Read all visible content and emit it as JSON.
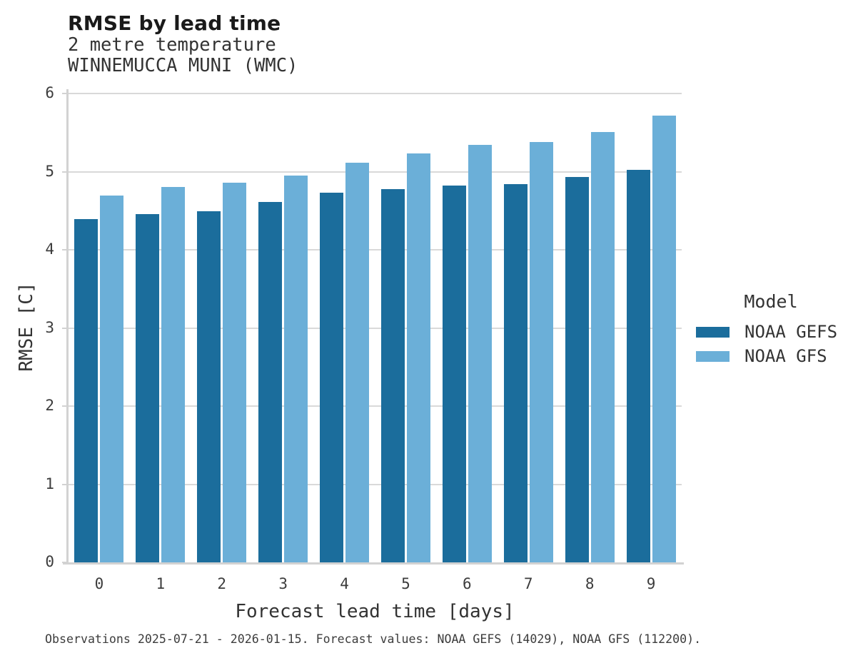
{
  "header": {
    "title": "RMSE by lead time",
    "subtitle_line1": "2 metre temperature",
    "subtitle_line2": "WINNEMUCCA MUNI (WMC)"
  },
  "chart_data": {
    "type": "bar",
    "title": "RMSE by lead time",
    "subtitle": [
      "2 metre temperature",
      "WINNEMUCCA MUNI (WMC)"
    ],
    "categories": [
      "0",
      "1",
      "2",
      "3",
      "4",
      "5",
      "6",
      "7",
      "8",
      "9"
    ],
    "series": [
      {
        "name": "NOAA GEFS",
        "color": "#1b6d9c",
        "values": [
          4.39,
          4.46,
          4.49,
          4.61,
          4.73,
          4.78,
          4.82,
          4.84,
          4.93,
          5.02
        ]
      },
      {
        "name": "NOAA GFS",
        "color": "#6bafd8",
        "values": [
          4.69,
          4.8,
          4.86,
          4.95,
          5.11,
          5.23,
          5.34,
          5.38,
          5.51,
          5.72
        ]
      }
    ],
    "xlabel": "Forecast lead time [days]",
    "ylabel": "RMSE [C]",
    "ylim": [
      0,
      6
    ],
    "yticks": [
      0,
      1,
      2,
      3,
      4,
      5,
      6
    ],
    "grid": "horizontal-major-only",
    "legend_position": "right-center"
  },
  "legend": {
    "title": "Model"
  },
  "footer": {
    "text": "Observations 2025-07-21 - 2026-01-15. Forecast values: NOAA GEFS (14029), NOAA GFS (112200)."
  },
  "colors": {
    "gefs_bar": "#1b6d9c",
    "gfs_bar": "#6bafd8",
    "gridline": "#d9d9d9",
    "axis_line": "#d2d2d2",
    "title_text": "#1a1a1a",
    "body_text": "#333333"
  }
}
